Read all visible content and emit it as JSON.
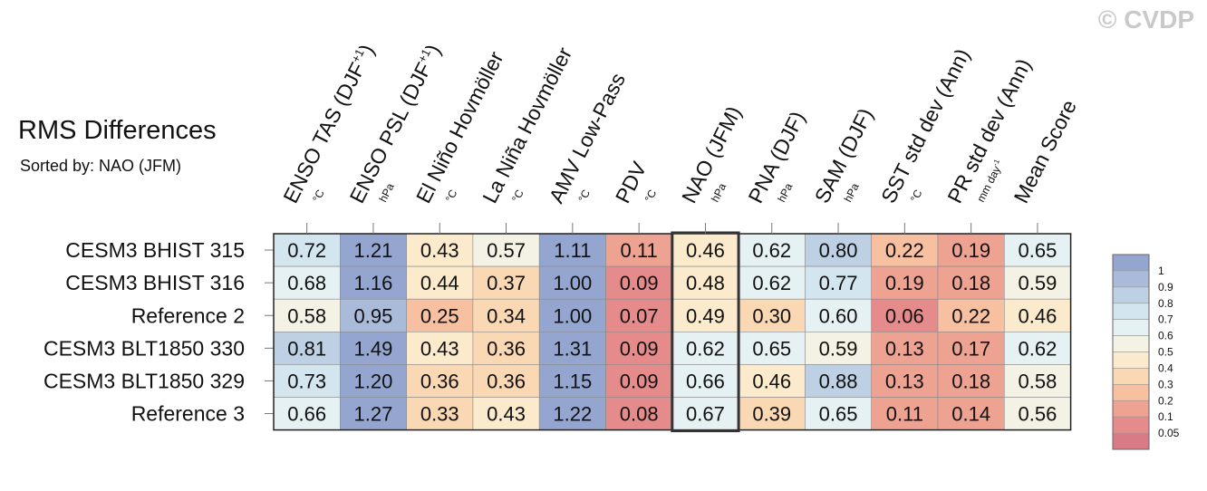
{
  "watermark": "© CVDP",
  "chart_data": {
    "type": "heatmap",
    "title": "RMS Differences",
    "subtitle": "Sorted by: NAO (JFM)",
    "sorted_column": "NAO (JFM)",
    "columns": [
      {
        "label": "ENSO TAS (DJF",
        "sup": "+1",
        "close": ")",
        "unit": "°C"
      },
      {
        "label": "ENSO PSL (DJF",
        "sup": "+1",
        "close": ")",
        "unit": "hPa"
      },
      {
        "label": "El Niño Hovmöller",
        "unit": "°C"
      },
      {
        "label": "La Niña Hovmöller",
        "unit": "°C"
      },
      {
        "label": "AMV Low-Pass",
        "unit": "°C"
      },
      {
        "label": "PDV",
        "unit": "°C"
      },
      {
        "label": "NAO (JFM)",
        "unit": "hPa"
      },
      {
        "label": "PNA (DJF)",
        "unit": "hPa"
      },
      {
        "label": "SAM (DJF)",
        "unit": "hPa"
      },
      {
        "label": "SST std dev (Ann)",
        "unit": "°C"
      },
      {
        "label": "PR std dev (Ann)",
        "unit": "mm day",
        "unit_sup": "-1"
      },
      {
        "label": "Mean Score",
        "unit": ""
      }
    ],
    "rows": [
      {
        "name": "CESM3 BHIST 315",
        "values": [
          "0.72",
          "1.21",
          "0.43",
          "0.57",
          "1.11",
          "0.11",
          "0.46",
          "0.62",
          "0.80",
          "0.22",
          "0.19",
          "0.65"
        ]
      },
      {
        "name": "CESM3 BHIST 316",
        "values": [
          "0.68",
          "1.16",
          "0.44",
          "0.37",
          "1.00",
          "0.09",
          "0.48",
          "0.62",
          "0.77",
          "0.19",
          "0.18",
          "0.59"
        ]
      },
      {
        "name": "Reference 2",
        "values": [
          "0.58",
          "0.95",
          "0.25",
          "0.34",
          "1.00",
          "0.07",
          "0.49",
          "0.30",
          "0.60",
          "0.06",
          "0.22",
          "0.46"
        ]
      },
      {
        "name": "CESM3 BLT1850 330",
        "values": [
          "0.81",
          "1.49",
          "0.43",
          "0.36",
          "1.31",
          "0.09",
          "0.62",
          "0.65",
          "0.59",
          "0.13",
          "0.17",
          "0.62"
        ]
      },
      {
        "name": "CESM3 BLT1850 329",
        "values": [
          "0.73",
          "1.20",
          "0.36",
          "0.36",
          "1.15",
          "0.09",
          "0.66",
          "0.46",
          "0.88",
          "0.13",
          "0.18",
          "0.58"
        ]
      },
      {
        "name": "Reference 3",
        "values": [
          "0.66",
          "1.27",
          "0.33",
          "0.43",
          "1.22",
          "0.08",
          "0.67",
          "0.39",
          "0.65",
          "0.11",
          "0.14",
          "0.56"
        ]
      }
    ],
    "colorbar": {
      "labels": [
        "1",
        "0.9",
        "0.8",
        "0.7",
        "0.6",
        "0.5",
        "0.4",
        "0.3",
        "0.2",
        "0.1",
        "0.05"
      ],
      "colors": [
        "#94a6cf",
        "#aabad9",
        "#bed0e3",
        "#d3e5ee",
        "#e6f1f3",
        "#f3f2e4",
        "#fbeacb",
        "#fad8b4",
        "#f6c0a1",
        "#eea392",
        "#e68b8b",
        "#d97a86"
      ]
    },
    "color_scale": {
      "breaks": [
        0.05,
        0.1,
        0.2,
        0.3,
        0.4,
        0.5,
        0.6,
        0.7,
        0.8,
        0.9,
        1.0
      ],
      "colors": [
        "#d97a86",
        "#e68b8b",
        "#eea392",
        "#f6c0a1",
        "#fad8b4",
        "#fbeacb",
        "#f3f2e4",
        "#e6f1f3",
        "#d3e5ee",
        "#bed0e3",
        "#aabad9",
        "#94a6cf"
      ]
    }
  }
}
